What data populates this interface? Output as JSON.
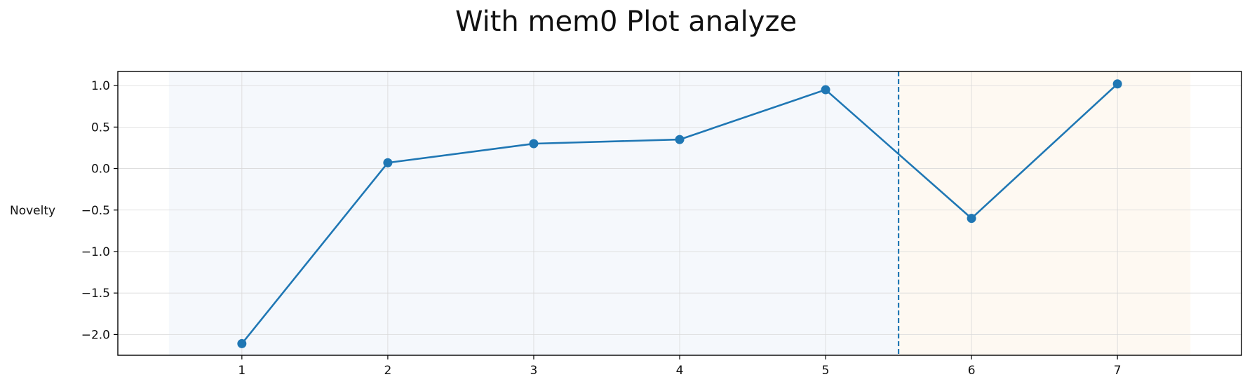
{
  "chart_data": {
    "type": "line",
    "title": "With mem0 Plot analyze",
    "xlabel": "",
    "ylabel": "Novelty",
    "x": [
      1,
      2,
      3,
      4,
      5,
      6,
      7
    ],
    "series": [
      {
        "values": [
          -2.11,
          0.07,
          0.3,
          0.35,
          0.95,
          -0.6,
          1.02
        ],
        "color": "#1f77b4",
        "marker": "circle"
      }
    ],
    "xlim": [
      0.15,
      7.85
    ],
    "ylim": [
      -2.25,
      1.17
    ],
    "xticks": [
      1,
      2,
      3,
      4,
      5,
      6,
      7
    ],
    "yticks": [
      1.0,
      0.5,
      0.0,
      -0.5,
      -1.0,
      -1.5,
      -2.0
    ],
    "ytick_labels": [
      "1.0",
      "0.5",
      "0.0",
      "−0.5",
      "−1.0",
      "−1.5",
      "−2.0"
    ],
    "grid": true,
    "shaded_regions": [
      {
        "x_start": 0.5,
        "x_end": 5.5,
        "color": "#f5f8fc"
      },
      {
        "x_start": 5.5,
        "x_end": 7.5,
        "color": "#fef9f2"
      }
    ],
    "vertical_line": {
      "x": 5.5,
      "style": "dashed",
      "color": "#1f77b4"
    }
  }
}
